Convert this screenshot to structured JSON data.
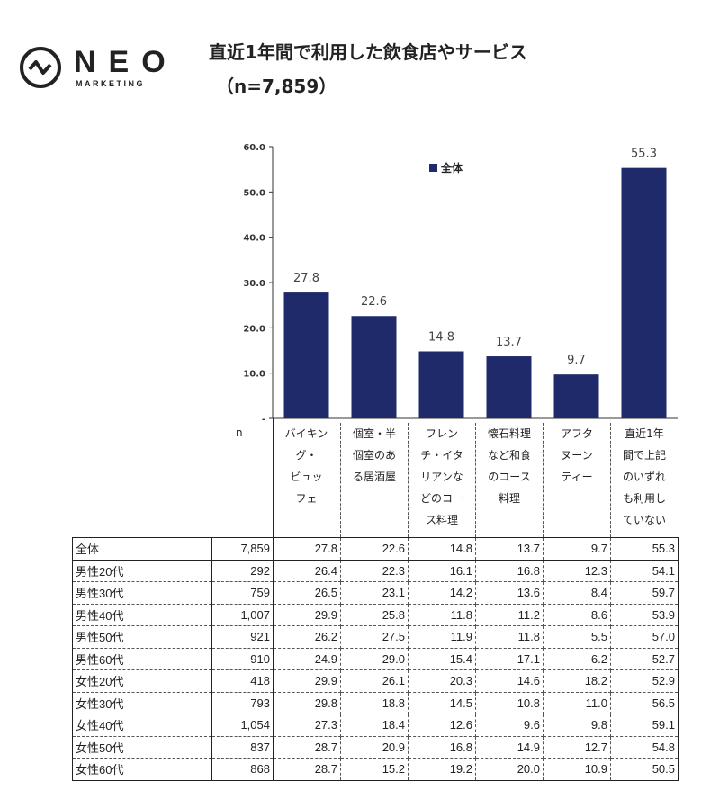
{
  "logo": {
    "name": "NEO",
    "sub": "MARKETING"
  },
  "title": "直近1年間で利用した飲食店やサービス",
  "subtitle": "（n=7,859）",
  "chart_data": {
    "type": "bar",
    "title": "直近1年間で利用した飲食店やサービス（n=7,859）",
    "categories": [
      "バイキング・ビュッフェ",
      "個室・半個室のある居酒屋",
      "フレンチ・イタリアンなどのコース料理",
      "懐石料理など和食のコース料理",
      "アフタヌーンティー",
      "直近1年間で上記のいずれも利用していない"
    ],
    "category_headers": [
      "バイキン\nグ・\nビュッ\nフェ",
      "個室・半\n個室のあ\nる居酒屋",
      "フレン\nチ・イタ\nリアンな\nどのコー\nス料理",
      "懐石料理\nなど和食\nのコース\n料理",
      "アフタ\nヌーン\nティー",
      "直近1年\n間で上記\nのいずれ\nも利用し\nていない"
    ],
    "series": [
      {
        "name": "全体",
        "values": [
          27.8,
          22.6,
          14.8,
          13.7,
          9.7,
          55.3
        ],
        "color": "#1f2a6b"
      }
    ],
    "data_labels": [
      "27.8",
      "22.6",
      "14.8",
      "13.7",
      "9.7",
      "55.3"
    ],
    "ylim": [
      0,
      60
    ],
    "yticks": [
      "-",
      "10.0",
      "20.0",
      "30.0",
      "40.0",
      "50.0",
      "60.0"
    ],
    "legend": "top-center",
    "grid": false
  },
  "table": {
    "n_header": "n",
    "rows": [
      [
        "全体",
        "7,859",
        "27.8",
        "22.6",
        "14.8",
        "13.7",
        "9.7",
        "55.3"
      ],
      [
        "男性20代",
        "292",
        "26.4",
        "22.3",
        "16.1",
        "16.8",
        "12.3",
        "54.1"
      ],
      [
        "男性30代",
        "759",
        "26.5",
        "23.1",
        "14.2",
        "13.6",
        "8.4",
        "59.7"
      ],
      [
        "男性40代",
        "1,007",
        "29.9",
        "25.8",
        "11.8",
        "11.2",
        "8.6",
        "53.9"
      ],
      [
        "男性50代",
        "921",
        "26.2",
        "27.5",
        "11.9",
        "11.8",
        "5.5",
        "57.0"
      ],
      [
        "男性60代",
        "910",
        "24.9",
        "29.0",
        "15.4",
        "17.1",
        "6.2",
        "52.7"
      ],
      [
        "女性20代",
        "418",
        "29.9",
        "26.1",
        "20.3",
        "14.6",
        "18.2",
        "52.9"
      ],
      [
        "女性30代",
        "793",
        "29.8",
        "18.8",
        "14.5",
        "10.8",
        "11.0",
        "56.5"
      ],
      [
        "女性40代",
        "1,054",
        "27.3",
        "18.4",
        "12.6",
        "9.6",
        "9.8",
        "59.1"
      ],
      [
        "女性50代",
        "837",
        "28.7",
        "20.9",
        "16.8",
        "14.9",
        "12.7",
        "54.8"
      ],
      [
        "女性60代",
        "868",
        "28.7",
        "15.2",
        "19.2",
        "20.0",
        "10.9",
        "50.5"
      ]
    ]
  }
}
